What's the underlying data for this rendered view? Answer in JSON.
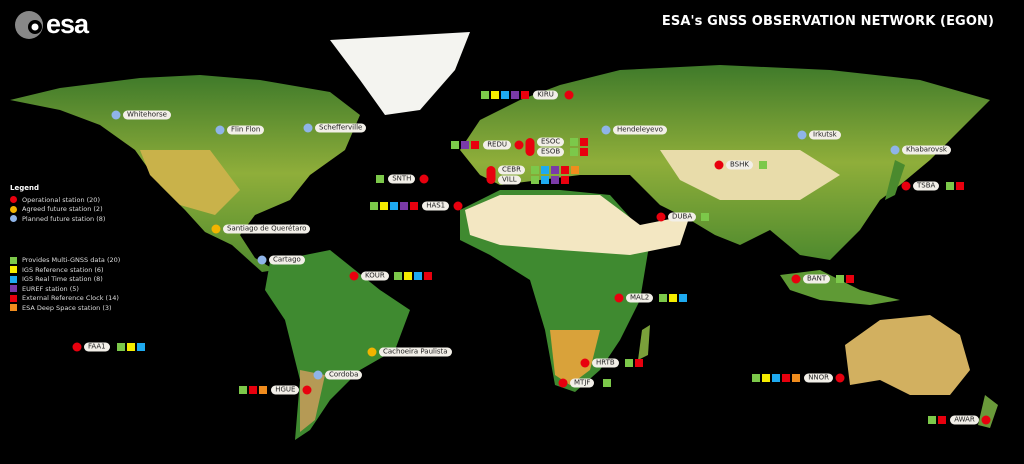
{
  "header": {
    "logo_text": "esa",
    "title": "ESA's GNSS OBSERVATION NETWORK (EGON)"
  },
  "legend": {
    "title": "Legend",
    "station_types": [
      {
        "key": "operational",
        "label": "Operational station (20)",
        "color": "#e8000e"
      },
      {
        "key": "agreed",
        "label": "Agreed future station (2)",
        "color": "#f2b400"
      },
      {
        "key": "planned",
        "label": "Planned future station (8)",
        "color": "#8fb4e8"
      }
    ],
    "services": [
      {
        "key": "mgnss",
        "label": "Provides Multi-GNSS data (20)",
        "color": "#7cc84a"
      },
      {
        "key": "igs",
        "label": "IGS Reference station (6)",
        "color": "#f5ec00"
      },
      {
        "key": "igsrt",
        "label": "IGS Real Time station (8)",
        "color": "#1eaaf0"
      },
      {
        "key": "euref",
        "label": "EUREF station (5)",
        "color": "#7a3aa8"
      },
      {
        "key": "clock",
        "label": "External Reference Clock (14)",
        "color": "#e8000e"
      },
      {
        "key": "deep",
        "label": "ESA Deep Space station (3)",
        "color": "#f08c1e"
      }
    ]
  },
  "stations": [
    {
      "name": "KIRU",
      "type": "operational",
      "services": [
        "mgnss",
        "igs",
        "igsrt",
        "euref",
        "clock"
      ]
    },
    {
      "name": "REDU",
      "type": "operational",
      "services": [
        "mgnss",
        "euref",
        "clock"
      ]
    },
    {
      "name": "ESOC",
      "type": "operational",
      "services": [
        "mgnss",
        "clock"
      ]
    },
    {
      "name": "ESOB",
      "type": "operational",
      "services": [
        "mgnss",
        "clock"
      ]
    },
    {
      "name": "CEBR",
      "type": "operational",
      "services": [
        "mgnss",
        "igsrt",
        "euref",
        "clock",
        "deep"
      ]
    },
    {
      "name": "VILL",
      "type": "operational",
      "services": [
        "mgnss",
        "igsrt",
        "euref",
        "clock"
      ]
    },
    {
      "name": "SNTH",
      "type": "operational",
      "services": [
        "mgnss"
      ]
    },
    {
      "name": "HAS1",
      "type": "operational",
      "services": [
        "mgnss",
        "igs",
        "igsrt",
        "euref",
        "clock"
      ]
    },
    {
      "name": "BSHK",
      "type": "operational",
      "services": [
        "mgnss"
      ]
    },
    {
      "name": "TSBA",
      "type": "operational",
      "services": [
        "mgnss",
        "clock"
      ]
    },
    {
      "name": "DUBA",
      "type": "operational",
      "services": [
        "mgnss"
      ]
    },
    {
      "name": "KOUR",
      "type": "operational",
      "services": [
        "mgnss",
        "igs",
        "igsrt",
        "clock"
      ]
    },
    {
      "name": "BANT",
      "type": "operational",
      "services": [
        "mgnss",
        "clock"
      ]
    },
    {
      "name": "MAL2",
      "type": "operational",
      "services": [
        "mgnss",
        "igs",
        "igsrt"
      ]
    },
    {
      "name": "HRTB",
      "type": "operational",
      "services": [
        "mgnss",
        "clock"
      ]
    },
    {
      "name": "MTJF",
      "type": "operational",
      "services": [
        "mgnss"
      ]
    },
    {
      "name": "NNOR",
      "type": "operational",
      "services": [
        "mgnss",
        "igs",
        "igsrt",
        "clock",
        "deep"
      ]
    },
    {
      "name": "AWAR",
      "type": "operational",
      "services": [
        "mgnss",
        "clock"
      ]
    },
    {
      "name": "FAA1",
      "type": "operational",
      "services": [
        "mgnss",
        "igs",
        "igsrt"
      ]
    },
    {
      "name": "HGUE",
      "type": "operational",
      "services": [
        "mgnss",
        "clock",
        "deep"
      ]
    },
    {
      "name": "Whitehorse",
      "type": "planned",
      "services": []
    },
    {
      "name": "Flin Flon",
      "type": "planned",
      "services": []
    },
    {
      "name": "Schefferville",
      "type": "planned",
      "services": []
    },
    {
      "name": "Hendeleyevo",
      "type": "planned",
      "services": []
    },
    {
      "name": "Irkutsk",
      "type": "planned",
      "services": []
    },
    {
      "name": "Khabarovsk",
      "type": "planned",
      "services": []
    },
    {
      "name": "Cartago",
      "type": "planned",
      "services": []
    },
    {
      "name": "Cordoba",
      "type": "planned",
      "services": []
    },
    {
      "name": "Santiago de Querétaro",
      "type": "agreed",
      "services": []
    },
    {
      "name": "Cachoeira Paulista",
      "type": "agreed",
      "services": []
    }
  ]
}
